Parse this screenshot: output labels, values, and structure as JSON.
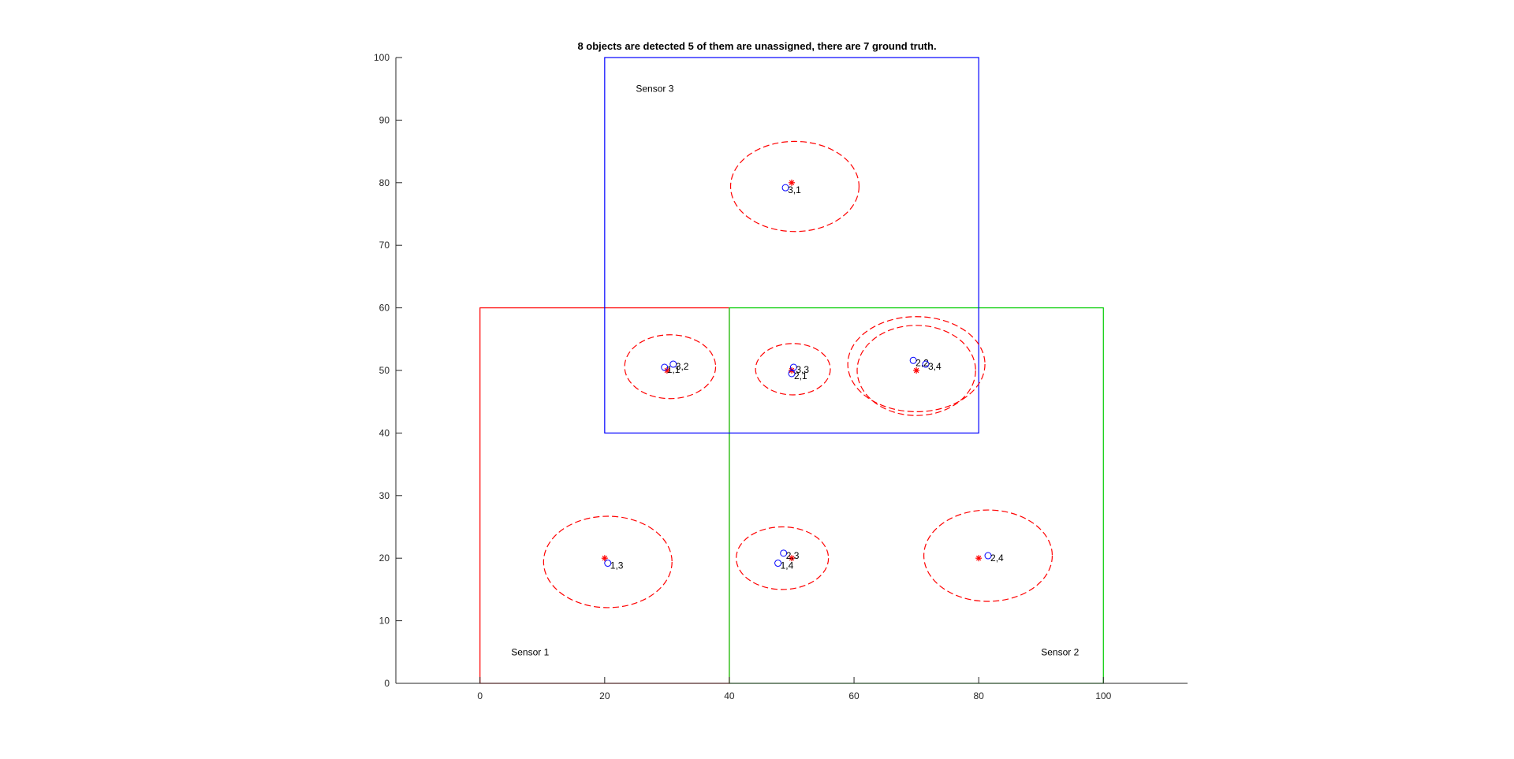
{
  "chart_data": {
    "type": "scatter",
    "title": "8 objects are detected 5 of them are unassigned, there are 7 ground truth.",
    "xlabel": "",
    "ylabel": "",
    "xlim": [
      -13.5,
      113.5
    ],
    "ylim": [
      0,
      100
    ],
    "xticks": [
      0,
      20,
      40,
      60,
      80,
      100
    ],
    "yticks": [
      0,
      10,
      20,
      30,
      40,
      50,
      60,
      70,
      80,
      90,
      100
    ],
    "grid": false,
    "colors": {
      "sensor1": "#ff0000",
      "sensor2": "#00cc00",
      "sensor3": "#0000ff",
      "truth": "#ff0000",
      "detection": "#0000ff",
      "ellipse": "#ff0000",
      "axis": "#262626"
    },
    "sensors": [
      {
        "label": "Sensor 1",
        "x": [
          0,
          40
        ],
        "y": [
          0,
          60
        ],
        "color": "#ff0000",
        "label_pos": [
          5,
          4.5
        ]
      },
      {
        "label": "Sensor 2",
        "x": [
          40,
          100
        ],
        "y": [
          0,
          60
        ],
        "color": "#00cc00",
        "label_pos": [
          90,
          4.5
        ]
      },
      {
        "label": "Sensor 3",
        "x": [
          20,
          80
        ],
        "y": [
          40,
          100
        ],
        "color": "#0000ff",
        "label_pos": [
          25,
          94.5
        ]
      }
    ],
    "ground_truth": [
      {
        "x": 20,
        "y": 20
      },
      {
        "x": 30,
        "y": 50
      },
      {
        "x": 50,
        "y": 50
      },
      {
        "x": 70,
        "y": 50
      },
      {
        "x": 50,
        "y": 20
      },
      {
        "x": 80,
        "y": 20
      },
      {
        "x": 50,
        "y": 80
      }
    ],
    "detections": [
      {
        "label": "1,1",
        "x": 29.6,
        "y": 50.5
      },
      {
        "label": "1,3",
        "x": 20.5,
        "y": 19.2
      },
      {
        "label": "1,4",
        "x": 47.8,
        "y": 19.2
      },
      {
        "label": "2,1",
        "x": 50.0,
        "y": 49.5
      },
      {
        "label": "2,2",
        "x": 69.5,
        "y": 51.6
      },
      {
        "label": "2,3",
        "x": 48.7,
        "y": 20.8
      },
      {
        "label": "2,4",
        "x": 81.5,
        "y": 20.4
      },
      {
        "label": "3,1",
        "x": 49.0,
        "y": 79.2
      },
      {
        "label": "3,2",
        "x": 31.0,
        "y": 51.0
      },
      {
        "label": "3,3",
        "x": 50.3,
        "y": 50.5
      },
      {
        "label": "3,4",
        "x": 71.5,
        "y": 51.0
      }
    ],
    "ellipses": [
      {
        "cx": 50.5,
        "cy": 79.4,
        "rx": 10.3,
        "ry": 7.2
      },
      {
        "cx": 30.5,
        "cy": 50.6,
        "rx": 7.3,
        "ry": 5.1
      },
      {
        "cx": 50.2,
        "cy": 50.2,
        "rx": 6.0,
        "ry": 4.1
      },
      {
        "cx": 70.0,
        "cy": 51.0,
        "rx": 11.0,
        "ry": 7.6
      },
      {
        "cx": 70.0,
        "cy": 50.0,
        "rx": 9.5,
        "ry": 7.2
      },
      {
        "cx": 20.5,
        "cy": 19.4,
        "rx": 10.3,
        "ry": 7.3
      },
      {
        "cx": 48.5,
        "cy": 20.0,
        "rx": 7.4,
        "ry": 5.0
      },
      {
        "cx": 81.5,
        "cy": 20.4,
        "rx": 10.3,
        "ry": 7.3
      }
    ]
  }
}
